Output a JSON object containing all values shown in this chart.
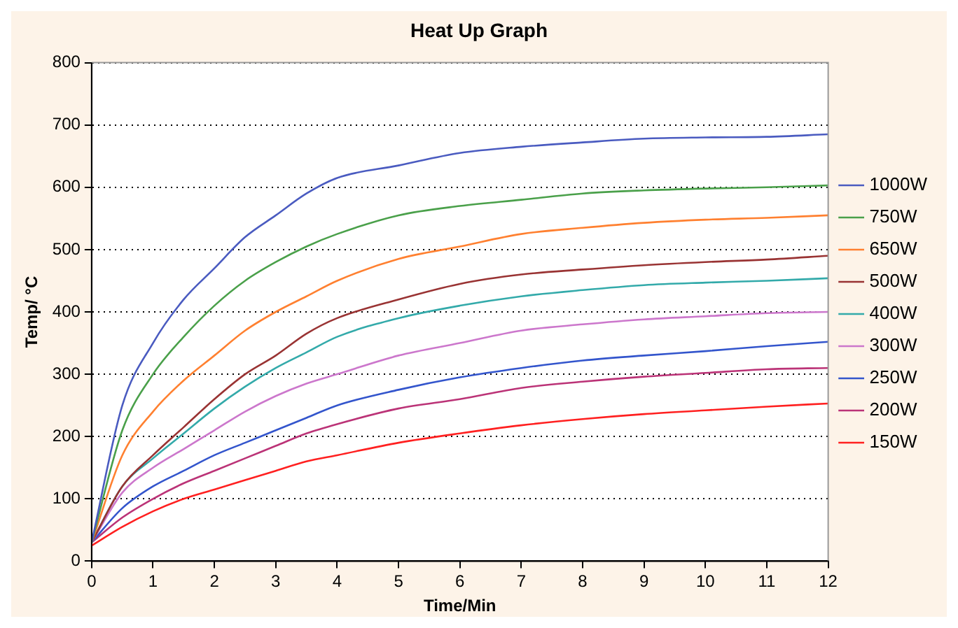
{
  "chart_data": {
    "type": "line",
    "title": "Heat Up Graph",
    "xlabel": "Time/Min",
    "ylabel": "Temp/ °C",
    "x": [
      0,
      0.5,
      1,
      1.5,
      2,
      2.5,
      3,
      3.5,
      4,
      5,
      6,
      7,
      8,
      9,
      10,
      11,
      12
    ],
    "xlim": [
      0,
      12
    ],
    "xticks": [
      0,
      1,
      2,
      3,
      4,
      5,
      6,
      7,
      8,
      9,
      10,
      11,
      12
    ],
    "ylim": [
      0,
      800
    ],
    "yticks": [
      0,
      100,
      200,
      300,
      400,
      500,
      600,
      700,
      800
    ],
    "grid": "y",
    "legend": "right",
    "marker": "none",
    "line_style": "solid",
    "series": [
      {
        "name": "1000W",
        "color": "#4a5bc0",
        "values": [
          30,
          250,
          350,
          420,
          470,
          520,
          555,
          590,
          615,
          635,
          655,
          665,
          672,
          678,
          680,
          681,
          685
        ]
      },
      {
        "name": "750W",
        "color": "#4aa04a",
        "values": [
          30,
          210,
          300,
          360,
          410,
          450,
          480,
          505,
          525,
          555,
          570,
          580,
          590,
          595,
          598,
          600,
          603
        ]
      },
      {
        "name": "650W",
        "color": "#ff8030",
        "values": [
          30,
          170,
          240,
          290,
          330,
          370,
          400,
          425,
          450,
          485,
          505,
          525,
          535,
          543,
          548,
          551,
          555
        ]
      },
      {
        "name": "500W",
        "color": "#993333",
        "values": [
          30,
          120,
          170,
          215,
          260,
          300,
          330,
          365,
          390,
          420,
          445,
          460,
          468,
          475,
          480,
          484,
          490
        ]
      },
      {
        "name": "400W",
        "color": "#33aaaa",
        "values": [
          30,
          120,
          165,
          205,
          245,
          280,
          310,
          335,
          360,
          390,
          410,
          425,
          435,
          443,
          447,
          450,
          454
        ]
      },
      {
        "name": "300W",
        "color": "#cc77cc",
        "values": [
          30,
          110,
          150,
          180,
          210,
          240,
          265,
          285,
          300,
          330,
          350,
          370,
          380,
          388,
          393,
          398,
          400
        ]
      },
      {
        "name": "250W",
        "color": "#3355cc",
        "values": [
          30,
          85,
          120,
          145,
          170,
          190,
          210,
          230,
          250,
          275,
          295,
          310,
          322,
          330,
          337,
          345,
          352
        ]
      },
      {
        "name": "200W",
        "color": "#bb3377",
        "values": [
          30,
          70,
          100,
          125,
          145,
          165,
          185,
          205,
          220,
          245,
          260,
          278,
          288,
          296,
          302,
          308,
          310
        ]
      },
      {
        "name": "150W",
        "color": "#ff2020",
        "values": [
          25,
          55,
          80,
          100,
          115,
          130,
          145,
          160,
          170,
          190,
          205,
          218,
          228,
          236,
          242,
          248,
          253
        ]
      }
    ]
  }
}
